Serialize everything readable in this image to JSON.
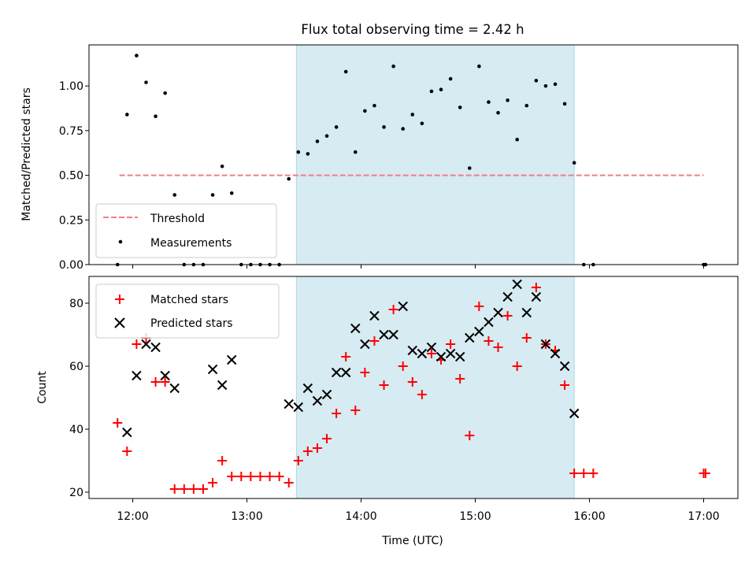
{
  "title": "Flux total observing time = 2.42 h",
  "colors": {
    "threshold": "#f08080",
    "measurements": "#000000",
    "matched": "#ff0000",
    "predicted": "#000000",
    "span": "#add8e6"
  },
  "chart_data": [
    {
      "type": "scatter",
      "panel": "top",
      "ylabel": "Matched/Predicted stars",
      "xlabel": "",
      "ylim": [
        0.0,
        1.23
      ],
      "xlim": [
        "11:37",
        "17:18"
      ],
      "yticks": [
        {
          "value": 0.0,
          "label": "0.00"
        },
        {
          "value": 0.25,
          "label": "0.25"
        },
        {
          "value": 0.5,
          "label": "0.50"
        },
        {
          "value": 0.75,
          "label": "0.75"
        },
        {
          "value": 1.0,
          "label": "1.00"
        }
      ],
      "shaded_span": [
        "13:26",
        "15:52"
      ],
      "threshold": {
        "name": "Threshold",
        "value": 0.5,
        "x": [
          "11:53",
          "17:00"
        ]
      },
      "legend": {
        "placement": "lower-left",
        "entries": [
          "Threshold",
          "Measurements"
        ]
      },
      "series": [
        {
          "name": "Measurements",
          "points": [
            [
              "11:52",
              0.0
            ],
            [
              "11:57",
              0.84
            ],
            [
              "12:02",
              1.17
            ],
            [
              "12:07",
              1.02
            ],
            [
              "12:12",
              0.83
            ],
            [
              "12:17",
              0.96
            ],
            [
              "12:22",
              0.39
            ],
            [
              "12:27",
              0.0
            ],
            [
              "12:32",
              0.0
            ],
            [
              "12:37",
              0.0
            ],
            [
              "12:42",
              0.39
            ],
            [
              "12:47",
              0.55
            ],
            [
              "12:52",
              0.4
            ],
            [
              "12:57",
              0.0
            ],
            [
              "13:02",
              0.0
            ],
            [
              "13:07",
              0.0
            ],
            [
              "13:12",
              0.0
            ],
            [
              "13:17",
              0.0
            ],
            [
              "13:22",
              0.48
            ],
            [
              "13:27",
              0.63
            ],
            [
              "13:32",
              0.62
            ],
            [
              "13:37",
              0.69
            ],
            [
              "13:42",
              0.72
            ],
            [
              "13:47",
              0.77
            ],
            [
              "13:52",
              1.08
            ],
            [
              "13:57",
              0.63
            ],
            [
              "14:02",
              0.86
            ],
            [
              "14:07",
              0.89
            ],
            [
              "14:12",
              0.77
            ],
            [
              "14:17",
              1.11
            ],
            [
              "14:22",
              0.76
            ],
            [
              "14:27",
              0.84
            ],
            [
              "14:32",
              0.79
            ],
            [
              "14:37",
              0.97
            ],
            [
              "14:42",
              0.98
            ],
            [
              "14:47",
              1.04
            ],
            [
              "14:52",
              0.88
            ],
            [
              "14:57",
              0.54
            ],
            [
              "15:02",
              1.11
            ],
            [
              "15:07",
              0.91
            ],
            [
              "15:12",
              0.85
            ],
            [
              "15:17",
              0.92
            ],
            [
              "15:22",
              0.7
            ],
            [
              "15:27",
              0.89
            ],
            [
              "15:32",
              1.03
            ],
            [
              "15:37",
              1.0
            ],
            [
              "15:42",
              1.01
            ],
            [
              "15:47",
              0.9
            ],
            [
              "15:52",
              0.57
            ],
            [
              "15:57",
              0.0
            ],
            [
              "16:02",
              0.0
            ],
            [
              "17:00",
              0.0
            ],
            [
              "17:01",
              0.0
            ]
          ]
        }
      ]
    },
    {
      "type": "scatter",
      "panel": "bottom",
      "ylabel": "Count",
      "xlabel": "Time (UTC)",
      "ylim": [
        18,
        88.5
      ],
      "xlim": [
        "11:37",
        "17:18"
      ],
      "yticks": [
        {
          "value": 20,
          "label": "20"
        },
        {
          "value": 40,
          "label": "40"
        },
        {
          "value": 60,
          "label": "60"
        },
        {
          "value": 80,
          "label": "80"
        }
      ],
      "xticks": [
        {
          "value": "12:00",
          "label": "12:00"
        },
        {
          "value": "13:00",
          "label": "13:00"
        },
        {
          "value": "14:00",
          "label": "14:00"
        },
        {
          "value": "15:00",
          "label": "15:00"
        },
        {
          "value": "16:00",
          "label": "16:00"
        },
        {
          "value": "17:00",
          "label": "17:00"
        }
      ],
      "shaded_span": [
        "13:26",
        "15:52"
      ],
      "legend": {
        "placement": "upper-left",
        "entries": [
          "Matched stars",
          "Predicted stars"
        ]
      },
      "series": [
        {
          "name": "Matched stars",
          "marker": "plus",
          "points": [
            [
              "11:52",
              42
            ],
            [
              "11:57",
              33
            ],
            [
              "12:02",
              67
            ],
            [
              "12:07",
              69
            ],
            [
              "12:12",
              55
            ],
            [
              "12:17",
              55
            ],
            [
              "12:22",
              21
            ],
            [
              "12:27",
              21
            ],
            [
              "12:32",
              21
            ],
            [
              "12:37",
              21
            ],
            [
              "12:42",
              23
            ],
            [
              "12:47",
              30
            ],
            [
              "12:52",
              25
            ],
            [
              "12:57",
              25
            ],
            [
              "13:02",
              25
            ],
            [
              "13:07",
              25
            ],
            [
              "13:12",
              25
            ],
            [
              "13:17",
              25
            ],
            [
              "13:22",
              23
            ],
            [
              "13:27",
              30
            ],
            [
              "13:32",
              33
            ],
            [
              "13:37",
              34
            ],
            [
              "13:42",
              37
            ],
            [
              "13:47",
              45
            ],
            [
              "13:52",
              63
            ],
            [
              "13:57",
              46
            ],
            [
              "14:02",
              58
            ],
            [
              "14:07",
              68
            ],
            [
              "14:12",
              54
            ],
            [
              "14:17",
              78
            ],
            [
              "14:22",
              60
            ],
            [
              "14:27",
              55
            ],
            [
              "14:32",
              51
            ],
            [
              "14:37",
              64
            ],
            [
              "14:42",
              62
            ],
            [
              "14:47",
              67
            ],
            [
              "14:52",
              56
            ],
            [
              "14:57",
              38
            ],
            [
              "15:02",
              79
            ],
            [
              "15:07",
              68
            ],
            [
              "15:12",
              66
            ],
            [
              "15:17",
              76
            ],
            [
              "15:22",
              60
            ],
            [
              "15:27",
              69
            ],
            [
              "15:32",
              85
            ],
            [
              "15:37",
              67
            ],
            [
              "15:42",
              65
            ],
            [
              "15:47",
              54
            ],
            [
              "15:52",
              26
            ],
            [
              "15:57",
              26
            ],
            [
              "16:02",
              26
            ],
            [
              "17:00",
              26
            ],
            [
              "17:01",
              26
            ]
          ]
        },
        {
          "name": "Predicted stars",
          "marker": "x",
          "points": [
            [
              "11:57",
              39
            ],
            [
              "12:02",
              57
            ],
            [
              "12:07",
              67
            ],
            [
              "12:12",
              66
            ],
            [
              "12:17",
              57
            ],
            [
              "12:22",
              53
            ],
            [
              "12:42",
              59
            ],
            [
              "12:47",
              54
            ],
            [
              "12:52",
              62
            ],
            [
              "13:22",
              48
            ],
            [
              "13:27",
              47
            ],
            [
              "13:32",
              53
            ],
            [
              "13:37",
              49
            ],
            [
              "13:42",
              51
            ],
            [
              "13:47",
              58
            ],
            [
              "13:52",
              58
            ],
            [
              "13:57",
              72
            ],
            [
              "14:02",
              67
            ],
            [
              "14:07",
              76
            ],
            [
              "14:12",
              70
            ],
            [
              "14:17",
              70
            ],
            [
              "14:22",
              79
            ],
            [
              "14:27",
              65
            ],
            [
              "14:32",
              64
            ],
            [
              "14:37",
              66
            ],
            [
              "14:42",
              63
            ],
            [
              "14:47",
              64
            ],
            [
              "14:52",
              63
            ],
            [
              "14:57",
              69
            ],
            [
              "15:02",
              71
            ],
            [
              "15:07",
              74
            ],
            [
              "15:12",
              77
            ],
            [
              "15:17",
              82
            ],
            [
              "15:22",
              86
            ],
            [
              "15:27",
              77
            ],
            [
              "15:32",
              82
            ],
            [
              "15:37",
              67
            ],
            [
              "15:42",
              64
            ],
            [
              "15:47",
              60
            ],
            [
              "15:52",
              45
            ]
          ]
        }
      ]
    }
  ]
}
